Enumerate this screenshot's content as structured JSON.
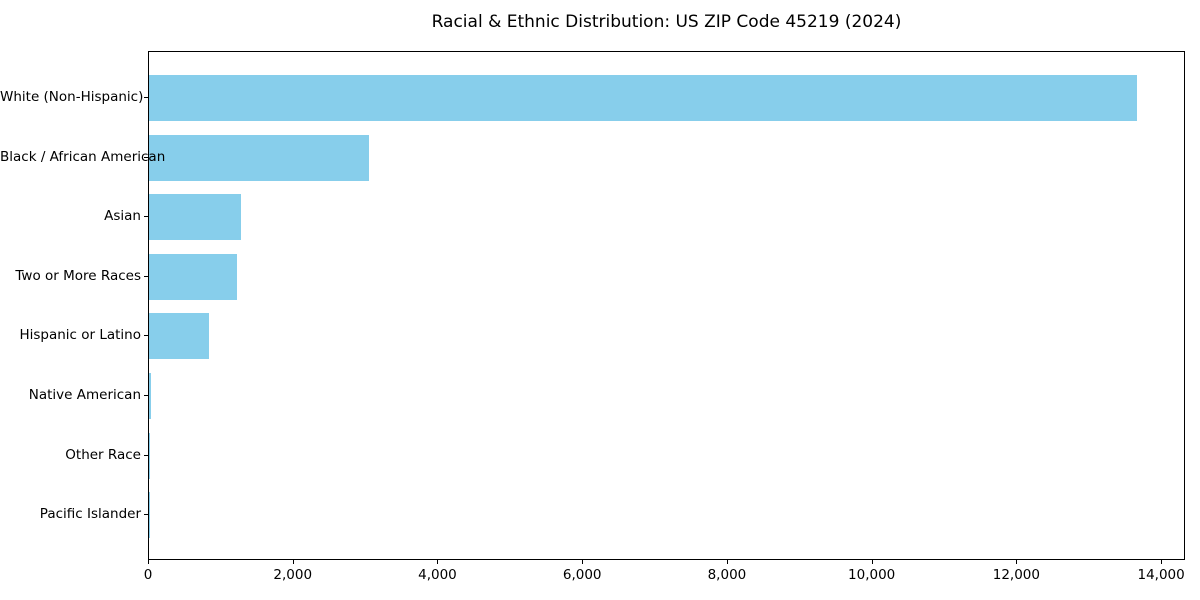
{
  "chart_data": {
    "type": "bar",
    "orientation": "horizontal",
    "title": "Racial & Ethnic Distribution: US ZIP Code 45219 (2024)",
    "categories": [
      "White (Non-Hispanic)",
      "Black / African American",
      "Asian",
      "Two or More Races",
      "Hispanic or Latino",
      "Native American",
      "Other Race",
      "Pacific Islander"
    ],
    "values": [
      13650,
      3040,
      1270,
      1210,
      830,
      25,
      20,
      10
    ],
    "xlabel": "",
    "ylabel": "",
    "xlim": [
      0,
      14330
    ],
    "x_ticks": [
      0,
      2000,
      4000,
      6000,
      8000,
      10000,
      12000,
      14000
    ],
    "x_tick_labels": [
      "0",
      "2,000",
      "4,000",
      "6,000",
      "8,000",
      "10,000",
      "12,000",
      "14,000"
    ],
    "bar_color": "#87CEEB",
    "axis_color": "#000000",
    "text_color": "#000000",
    "background_color": "#ffffff",
    "grid": false,
    "legend": null
  }
}
